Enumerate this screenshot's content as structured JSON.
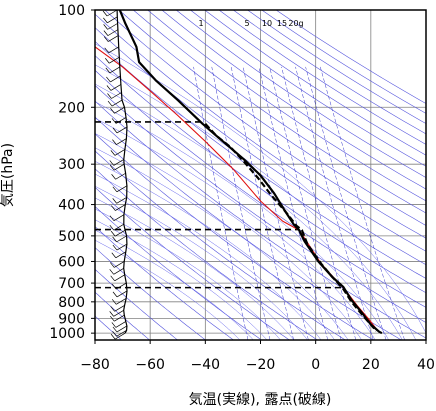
{
  "chart_data": {
    "type": "line",
    "title": "",
    "xlabel": "気温(実線), 露点(破線)",
    "ylabel": "気圧(hPa)",
    "xlim": [
      -80,
      40
    ],
    "ylim_hpa": [
      100,
      1050
    ],
    "y_scale": "log",
    "grid": true,
    "x_ticks": [
      "−80",
      "−60",
      "−40",
      "−20",
      "0",
      "20",
      "40"
    ],
    "x_tick_values": [
      -80,
      -60,
      -40,
      -20,
      0,
      20,
      40
    ],
    "y_ticks": [
      "100",
      "200",
      "300",
      "400",
      "500",
      "600",
      "700",
      "800",
      "900",
      "1000"
    ],
    "y_tick_values": [
      100,
      200,
      300,
      400,
      500,
      600,
      700,
      800,
      900,
      1000
    ],
    "mixing_ratio_labels": [
      "1",
      "5",
      "10",
      "15",
      "20g"
    ],
    "mixing_ratio_values": [
      1,
      5,
      10,
      15,
      20
    ],
    "series": [
      {
        "role": "temperature",
        "style": "solid",
        "color": "#000000",
        "points": [
          [
            -71,
            100
          ],
          [
            -69,
            110
          ],
          [
            -65,
            130
          ],
          [
            -64,
            145
          ],
          [
            -58,
            165
          ],
          [
            -50,
            190
          ],
          [
            -41,
            225
          ],
          [
            -36,
            245
          ],
          [
            -32,
            262
          ],
          [
            -26,
            290
          ],
          [
            -20,
            325
          ],
          [
            -15,
            370
          ],
          [
            -11,
            420
          ],
          [
            -8,
            460
          ],
          [
            -6,
            480
          ],
          [
            -4,
            520
          ],
          [
            1,
            600
          ],
          [
            6,
            670
          ],
          [
            10,
            720
          ],
          [
            13,
            790
          ],
          [
            17,
            870
          ],
          [
            20,
            940
          ],
          [
            23,
            990
          ],
          [
            24,
            1000
          ]
        ]
      },
      {
        "role": "dewpoint",
        "style": "dashed",
        "color": "#000000",
        "points": [
          [
            -40,
            225
          ],
          [
            -36,
            245
          ],
          [
            -31,
            265
          ],
          [
            -26,
            295
          ],
          [
            -21,
            330
          ],
          [
            -16,
            375
          ],
          [
            -11,
            420
          ],
          [
            -7,
            465
          ],
          [
            -5,
            480
          ],
          [
            -3,
            530
          ],
          [
            2,
            610
          ],
          [
            6,
            670
          ],
          [
            10,
            730
          ],
          [
            13,
            800
          ],
          [
            17,
            880
          ],
          [
            20,
            940
          ],
          [
            22,
            985
          ]
        ]
      },
      {
        "role": "parcel",
        "style": "solid",
        "color": "#e01010",
        "points": [
          [
            -80,
            130
          ],
          [
            -70,
            150
          ],
          [
            -60,
            178
          ],
          [
            -50,
            212
          ],
          [
            -40,
            255
          ],
          [
            -30,
            310
          ],
          [
            -20,
            390
          ],
          [
            -12,
            450
          ],
          [
            -6,
            480
          ],
          [
            -2,
            540
          ],
          [
            2,
            610
          ],
          [
            7,
            680
          ],
          [
            11,
            740
          ],
          [
            15,
            820
          ],
          [
            19,
            900
          ],
          [
            22,
            970
          ],
          [
            23,
            990
          ]
        ]
      }
    ],
    "levels_hpa": [
      222,
      478,
      723
    ],
    "wind_barbs_hpa": [
      100,
      105,
      110,
      115,
      120,
      130,
      140,
      150,
      160,
      170,
      180,
      190,
      200,
      215,
      230,
      250,
      270,
      290,
      300,
      320,
      350,
      380,
      400,
      430,
      460,
      480,
      500,
      530,
      560,
      600,
      630,
      660,
      700,
      740,
      780,
      820,
      850,
      880,
      920,
      950,
      980,
      1000
    ],
    "colors": {
      "isotherm": "#2222cc",
      "dry_adiabat": "#5555dd",
      "moist_adiabat": "#6666ee",
      "mixing_ratio": "#3333cc",
      "grid": "#808080",
      "frame": "#000000"
    }
  }
}
